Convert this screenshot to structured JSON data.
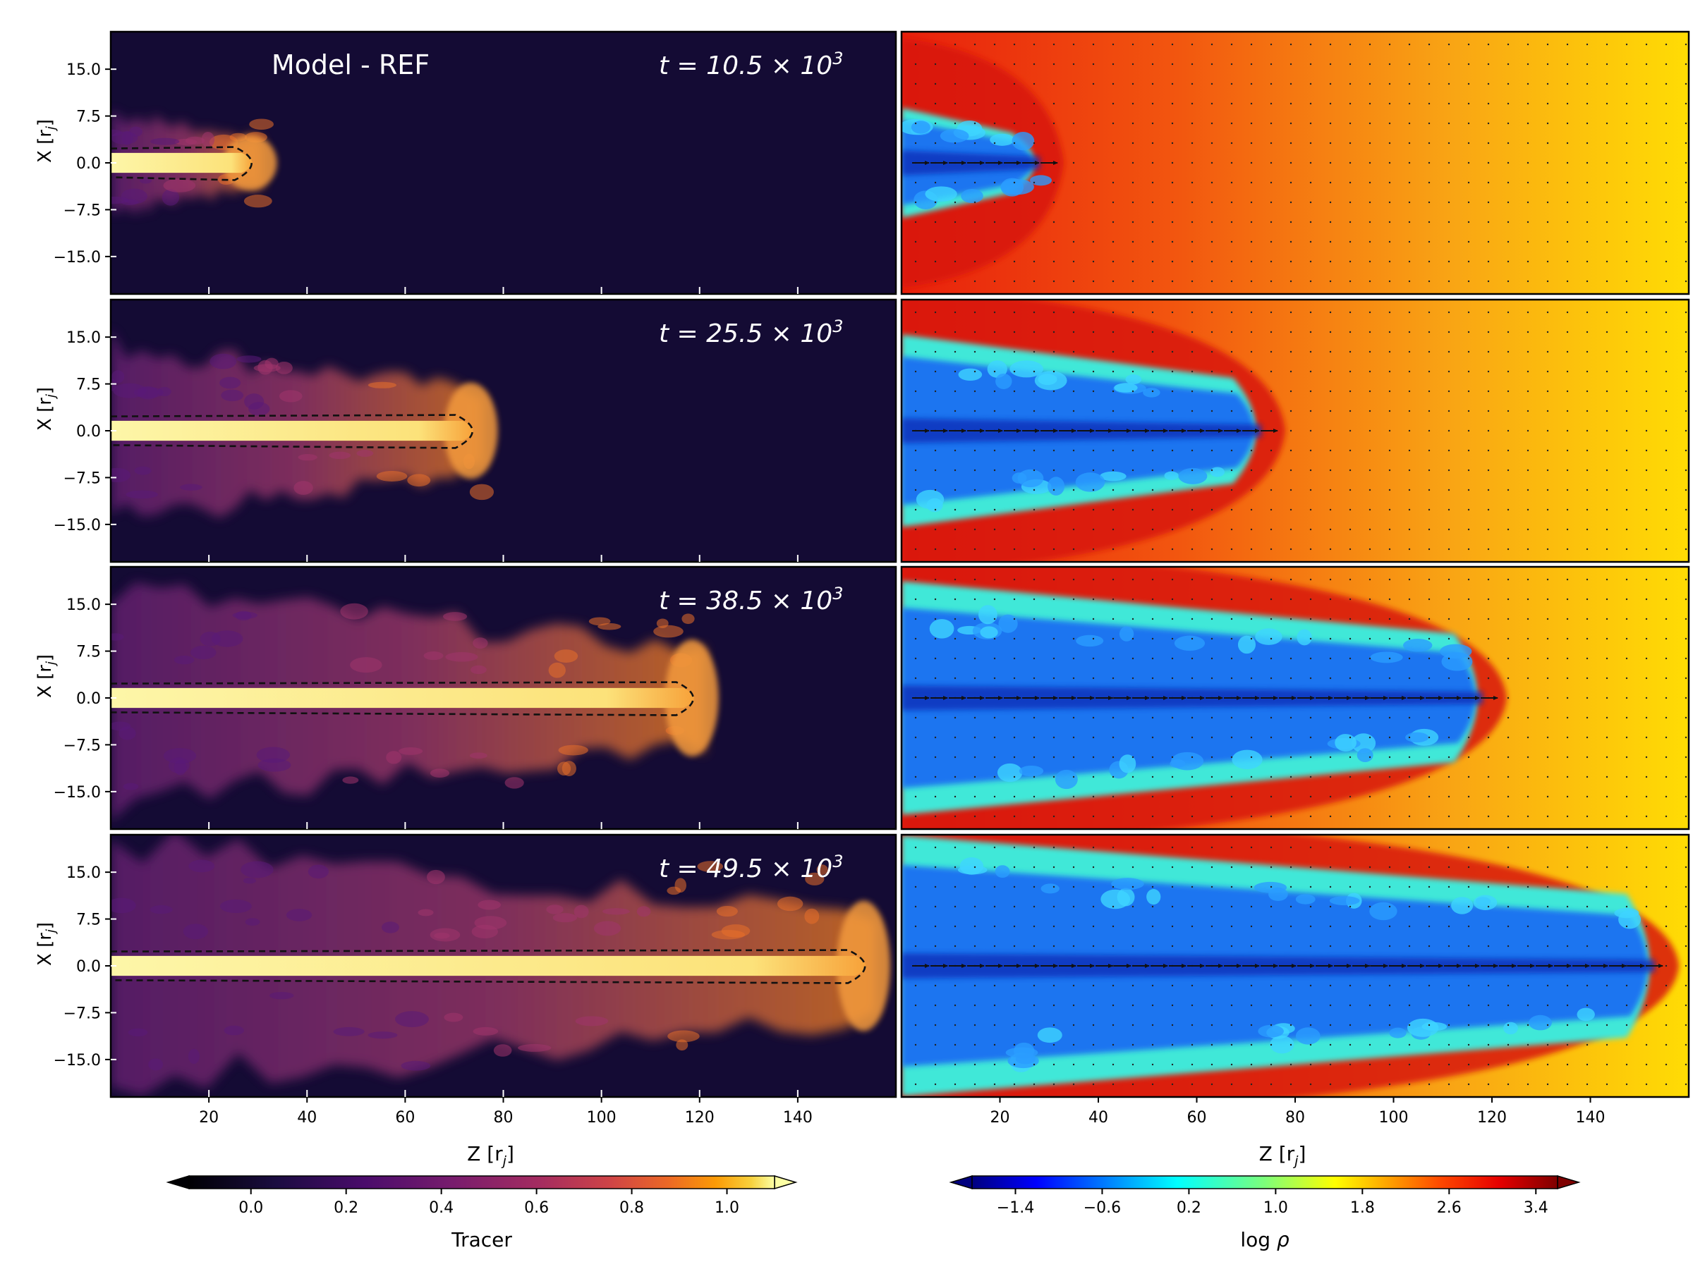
{
  "figure": {
    "model_label": "Model - REF",
    "time_prefix": "t = ",
    "time_suffix": " × 10",
    "time_exponent": "3",
    "xlabel": "Z [r",
    "xlabel_sub": "j",
    "xlabel_close": "]",
    "ylabel": "X [r",
    "ylabel_sub": "j",
    "ylabel_close": "]"
  },
  "chart_data": {
    "type": "heatmap",
    "xlim": [
      0,
      160
    ],
    "ylim": [
      -21,
      21
    ],
    "xticks": [
      20,
      40,
      60,
      80,
      100,
      120,
      140
    ],
    "yticks": [
      15.0,
      7.5,
      0.0,
      -7.5,
      -15.0
    ],
    "ytick_labels": [
      "15.0",
      "7.5",
      "0.0",
      "−7.5",
      "−15.0"
    ],
    "panels": [
      {
        "time": "10.5",
        "jet_head_z": 31,
        "cocoon_halfwidth": 8,
        "bow_halfwidth": 20
      },
      {
        "time": "25.5",
        "jet_head_z": 76,
        "cocoon_halfwidth": 14,
        "bow_halfwidth": 23
      },
      {
        "time": "38.5",
        "jet_head_z": 121,
        "cocoon_halfwidth": 17,
        "bow_halfwidth": 24
      },
      {
        "time": "49.5",
        "jet_head_z": 156,
        "cocoon_halfwidth": 19,
        "bow_halfwidth": 25
      }
    ],
    "colorbars": [
      {
        "label": "Tracer",
        "ticks": [
          "0.0",
          "0.2",
          "0.4",
          "0.6",
          "0.8",
          "1.0"
        ],
        "range": [
          -0.13,
          1.1
        ],
        "tick_values": [
          0.0,
          0.2,
          0.4,
          0.6,
          0.8,
          1.0
        ],
        "colormap": "inferno"
      },
      {
        "label": "log ρ",
        "label_main": "log",
        "label_symbol": "ρ",
        "ticks": [
          "−1.4",
          "−0.6",
          "0.2",
          "1.0",
          "1.8",
          "2.6",
          "3.4"
        ],
        "range": [
          -1.8,
          3.6
        ],
        "tick_values": [
          -1.4,
          -0.6,
          0.2,
          1.0,
          1.8,
          2.6,
          3.4
        ],
        "colormap": "jet"
      }
    ],
    "colors": {
      "tracer_background": "#140b34",
      "tracer_core": "#fcf4a0",
      "tracer_mid": "#f57d15",
      "tracer_low": "#5e1f73",
      "rho_ambient_near": "#e8230e",
      "rho_ambient_far": "#ffd700",
      "rho_cocoon": "#1070ff",
      "rho_edge": "#44f0d0",
      "rho_shell": "#c8120a"
    }
  }
}
